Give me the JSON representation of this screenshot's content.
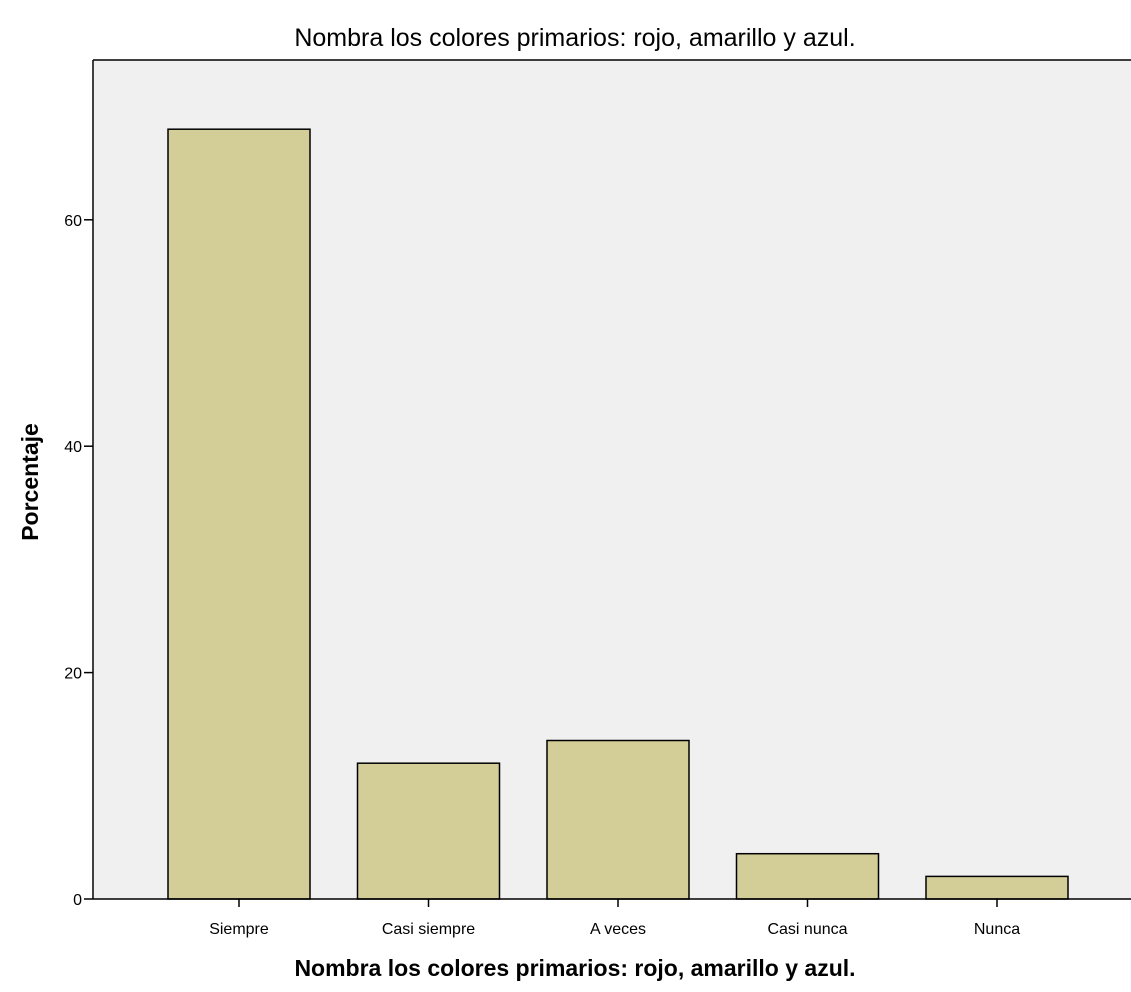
{
  "chart_data": {
    "type": "bar",
    "title": "Nombra los colores primarios: rojo, amarillo y azul.",
    "xlabel": "Nombra los colores primarios: rojo, amarillo y azul.",
    "ylabel": "Porcentaje",
    "categories": [
      "Siempre",
      "Casi siempre",
      "A veces",
      "Casi nunca",
      "Nunca"
    ],
    "values": [
      68,
      12,
      14,
      4,
      2
    ],
    "ylim": [
      0,
      72.5
    ],
    "yticks": [
      0,
      20,
      40,
      60
    ],
    "grid": false,
    "legend": "none",
    "colors": {
      "bar_fill": "#D3CE97",
      "bar_stroke": "#000000",
      "plot_background": "#F0F0F0",
      "axis": "#000000"
    }
  }
}
